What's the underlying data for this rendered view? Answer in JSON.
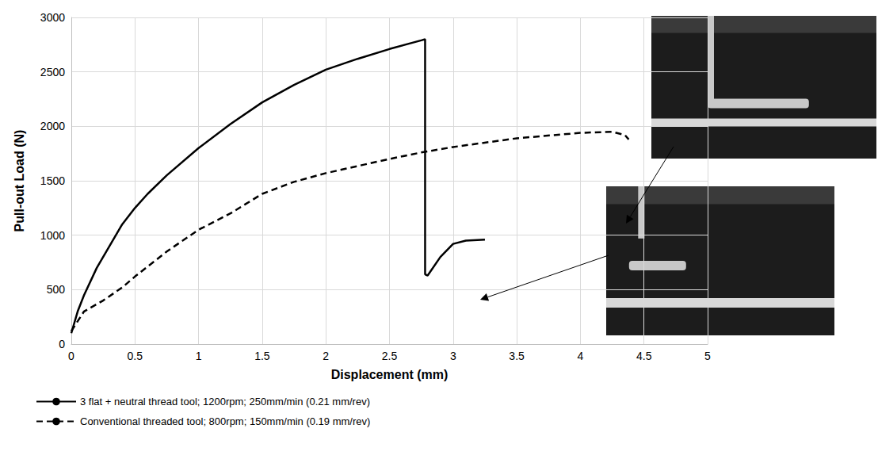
{
  "chart_data": {
    "type": "line",
    "x_label": "Displacement (mm)",
    "y_label": "Pull-out Load (N)",
    "xlim": [
      0,
      5
    ],
    "xticks": [
      0,
      0.5,
      1,
      1.5,
      2,
      2.5,
      3,
      3.5,
      4,
      4.5,
      5
    ],
    "ylim": [
      0,
      3000
    ],
    "yticks": [
      0,
      500,
      1000,
      1500,
      2000,
      2500,
      3000
    ],
    "grid": true,
    "legend": "bottom",
    "series": [
      {
        "name": "3 flat + neutral thread tool; 1200rpm; 250mm/min (0.21 mm/rev)",
        "color": "#000000",
        "line_style": "solid",
        "x": [
          0,
          0.05,
          0.1,
          0.2,
          0.3,
          0.4,
          0.5,
          0.6,
          0.75,
          1,
          1.25,
          1.5,
          1.75,
          2,
          2.25,
          2.5,
          2.75,
          2.78,
          2.78,
          2.8,
          2.9,
          3,
          3.1,
          3.25
        ],
        "values": [
          100,
          300,
          450,
          700,
          900,
          1100,
          1250,
          1380,
          1550,
          1800,
          2020,
          2220,
          2380,
          2520,
          2620,
          2710,
          2790,
          2800,
          640,
          630,
          800,
          920,
          950,
          960
        ]
      },
      {
        "name": "Conventional threaded tool; 800rpm; 150mm/min (0.19 mm/rev)",
        "color": "#000000",
        "line_style": "dashed",
        "x": [
          0,
          0.1,
          0.25,
          0.4,
          0.5,
          0.75,
          1,
          1.25,
          1.5,
          1.75,
          2,
          2.5,
          2.75,
          3,
          3.5,
          4,
          4.25,
          4.35,
          4.38
        ],
        "values": [
          120,
          300,
          400,
          520,
          620,
          850,
          1050,
          1200,
          1380,
          1490,
          1570,
          1700,
          1760,
          1810,
          1890,
          1940,
          1950,
          1920,
          1880
        ]
      }
    ]
  }
}
